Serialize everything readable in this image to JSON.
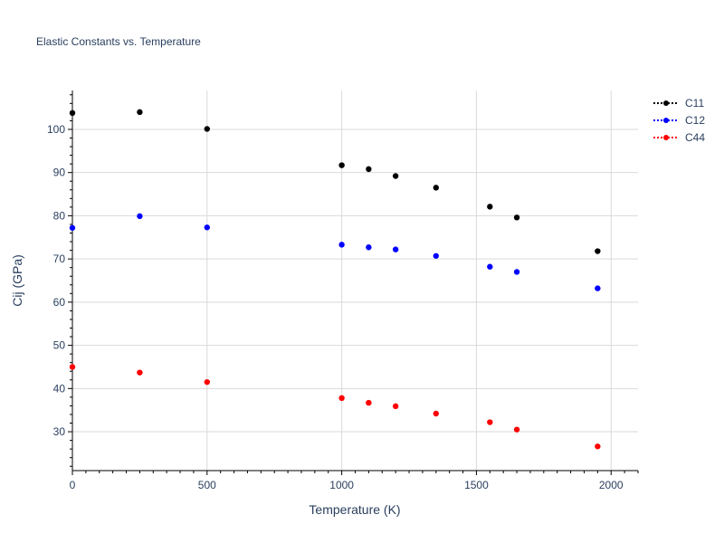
{
  "chart_data": {
    "type": "scatter",
    "title": "Elastic Constants vs. Temperature",
    "xlabel": "Temperature (K)",
    "ylabel": "Cij (GPa)",
    "xlim": [
      0,
      2100
    ],
    "ylim": [
      21,
      109
    ],
    "xticks": [
      0,
      500,
      1000,
      1500,
      2000
    ],
    "yticks": [
      30,
      40,
      50,
      60,
      70,
      80,
      90,
      100
    ],
    "grid": true,
    "legend_position": "top-right",
    "x": [
      0,
      250,
      500,
      1000,
      1100,
      1200,
      1350,
      1550,
      1650,
      1950
    ],
    "series": [
      {
        "name": "C11",
        "color": "#000000",
        "values": [
          103.8,
          104.0,
          100.1,
          91.7,
          90.8,
          89.2,
          86.5,
          82.1,
          79.6,
          71.8
        ]
      },
      {
        "name": "C12",
        "color": "#0000ff",
        "values": [
          77.2,
          79.9,
          77.3,
          73.3,
          72.7,
          72.2,
          70.7,
          68.2,
          67.0,
          63.2
        ]
      },
      {
        "name": "C44",
        "color": "#ff0000",
        "values": [
          45.0,
          43.7,
          41.5,
          37.8,
          36.7,
          35.9,
          34.2,
          32.2,
          30.5,
          26.6
        ]
      }
    ]
  }
}
